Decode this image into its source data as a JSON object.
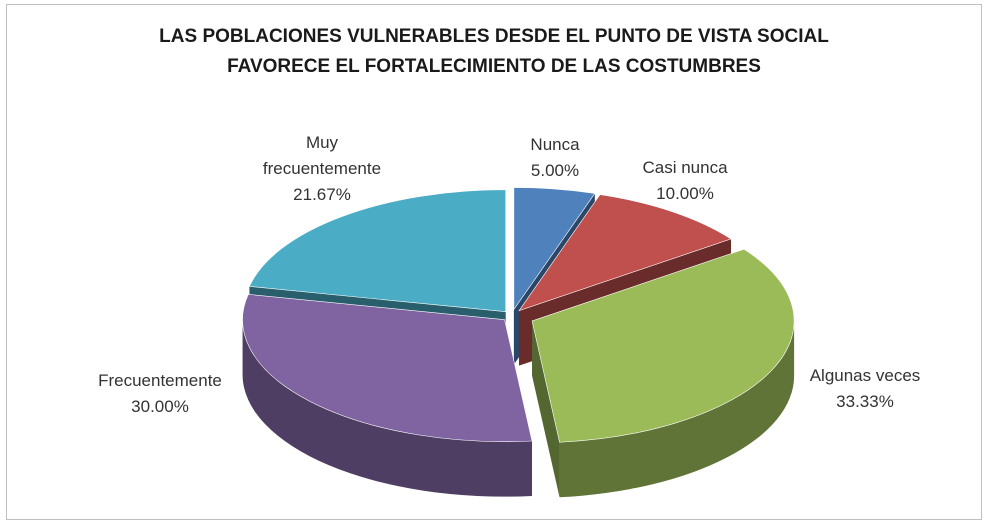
{
  "chart_data": {
    "type": "pie",
    "title": "LAS POBLACIONES VULNERABLES DESDE EL PUNTO DE VISTA SOCIAL FAVORECE EL FORTALECIMIENTO DE LAS COSTUMBRES",
    "categories": [
      "Nunca",
      "Casi nunca",
      "Algunas veces",
      "Frecuentemente",
      "Muy frecuentemente"
    ],
    "values": [
      5,
      10,
      33.33,
      30,
      21.67
    ],
    "value_labels": [
      "5.00%",
      "10.00%",
      "33.33%",
      "30.00%",
      "21.67%"
    ],
    "colors": [
      "#4f81bd",
      "#c0504d",
      "#9bbb59",
      "#8064a2",
      "#4bacc6"
    ]
  }
}
